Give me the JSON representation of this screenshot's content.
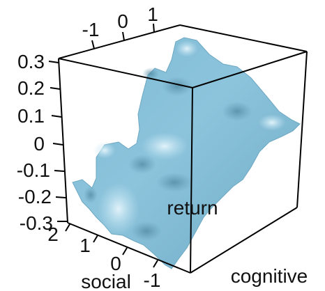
{
  "chart_data": {
    "type": "surface-3d",
    "title": "",
    "axes": {
      "x": {
        "label": "social",
        "ticks": [
          {
            "value": 2,
            "label": "2"
          },
          {
            "value": 1,
            "label": "1"
          },
          {
            "value": 0,
            "label": "0"
          },
          {
            "value": -1,
            "label": "-1"
          }
        ]
      },
      "y": {
        "label": "cognitive",
        "ticks": []
      },
      "z": {
        "label": "return",
        "ticks": [
          {
            "value": 0.3,
            "label": "0.3"
          },
          {
            "value": 0.2,
            "label": "0.2"
          },
          {
            "value": 0.1,
            "label": "0.1"
          },
          {
            "value": 0,
            "label": "0"
          },
          {
            "value": -0.1,
            "label": "-0.1"
          },
          {
            "value": -0.2,
            "label": "-0.2"
          },
          {
            "value": -0.3,
            "label": "-0.3"
          }
        ]
      },
      "top": {
        "label": "",
        "ticks": [
          {
            "value": -1,
            "label": "-1"
          },
          {
            "value": 0,
            "label": "0"
          },
          {
            "value": 1,
            "label": "1"
          }
        ]
      }
    },
    "zlim": [
      -0.3,
      0.3
    ],
    "surface_color": "#8cc4dc",
    "surface_highlight": "#d8eef8",
    "surface_shadow": "#5b93ad",
    "box": true,
    "grid": false
  }
}
